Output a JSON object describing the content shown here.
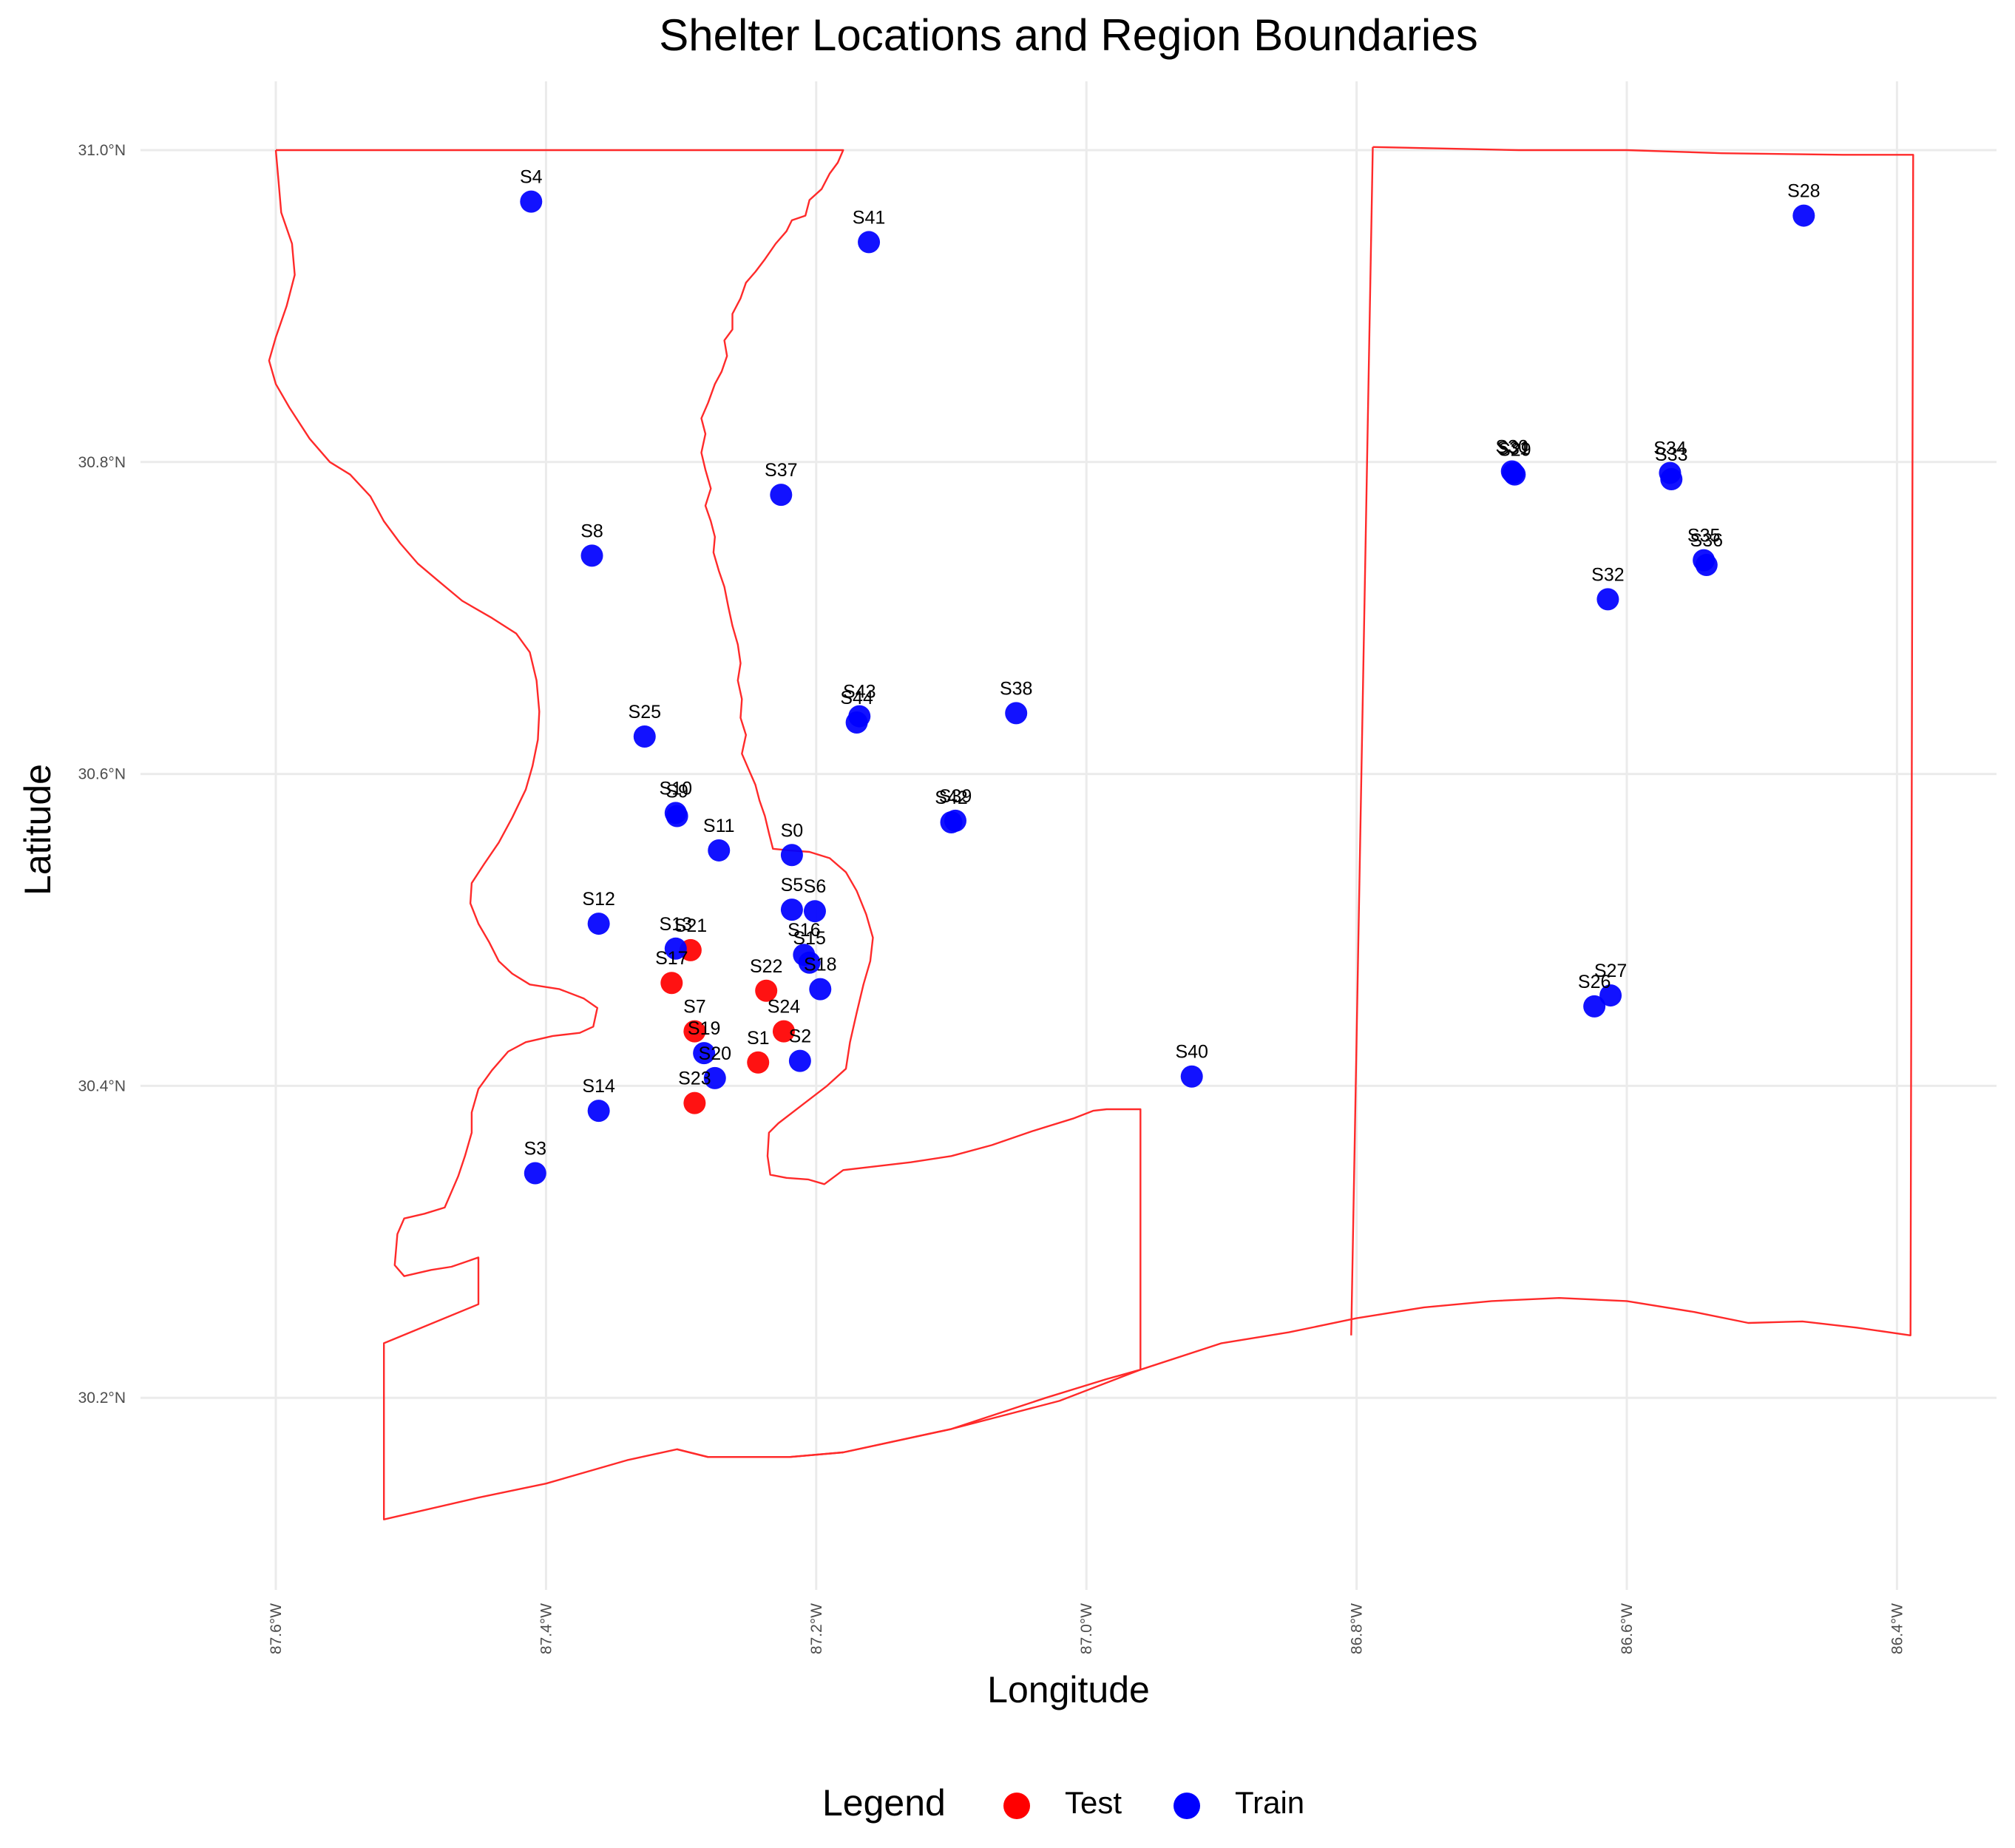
{
  "chart_data": {
    "type": "scatter",
    "title": "Shelter Locations and Region Boundaries",
    "xlabel": "Longitude",
    "ylabel": "Latitude",
    "xlim": [
      -87.6,
      -86.4
    ],
    "ylim": [
      30.2,
      31.0
    ],
    "grid": true,
    "x_ticks": [
      {
        "value": -87.6,
        "label": "87.6°W"
      },
      {
        "value": -87.4,
        "label": "87.4°W"
      },
      {
        "value": -87.2,
        "label": "87.2°W"
      },
      {
        "value": -87.0,
        "label": "87.0°W"
      },
      {
        "value": -86.8,
        "label": "86.8°W"
      },
      {
        "value": -86.6,
        "label": "86.6°W"
      },
      {
        "value": -86.4,
        "label": "86.4°W"
      }
    ],
    "y_ticks": [
      {
        "value": 31.0,
        "label": "31.0°N"
      },
      {
        "value": 30.8,
        "label": "30.8°N"
      },
      {
        "value": 30.6,
        "label": "30.6°N"
      },
      {
        "value": 30.4,
        "label": "30.4°N"
      },
      {
        "value": 30.2,
        "label": "30.2°N"
      }
    ],
    "legend": {
      "title": "Legend",
      "placement": "bottom",
      "entries": [
        {
          "label": "Test",
          "color": "#ff0000"
        },
        {
          "label": "Train",
          "color": "#0000ff"
        }
      ]
    },
    "boundaries": [
      {
        "name": "west-region",
        "points": [
          [
            -87.6,
            31.0
          ],
          [
            -87.43,
            31.0
          ],
          [
            -87.3,
            31.0
          ],
          [
            -87.18,
            31.0
          ],
          [
            -87.184,
            30.992
          ],
          [
            -87.19,
            30.985
          ],
          [
            -87.196,
            30.975
          ],
          [
            -87.205,
            30.968
          ],
          [
            -87.208,
            30.958
          ],
          [
            -87.218,
            30.955
          ],
          [
            -87.222,
            30.948
          ],
          [
            -87.23,
            30.94
          ],
          [
            -87.238,
            30.93
          ],
          [
            -87.245,
            30.922
          ],
          [
            -87.252,
            30.915
          ],
          [
            -87.256,
            30.905
          ],
          [
            -87.262,
            30.895
          ],
          [
            -87.262,
            30.885
          ],
          [
            -87.268,
            30.878
          ],
          [
            -87.266,
            30.868
          ],
          [
            -87.27,
            30.858
          ],
          [
            -87.275,
            30.85
          ],
          [
            -87.28,
            30.838
          ],
          [
            -87.285,
            30.828
          ],
          [
            -87.282,
            30.818
          ],
          [
            -87.285,
            30.806
          ],
          [
            -87.282,
            30.795
          ],
          [
            -87.278,
            30.783
          ],
          [
            -87.282,
            30.772
          ],
          [
            -87.278,
            30.762
          ],
          [
            -87.275,
            30.752
          ],
          [
            -87.276,
            30.742
          ],
          [
            -87.272,
            30.73
          ],
          [
            -87.268,
            30.72
          ],
          [
            -87.265,
            30.707
          ],
          [
            -87.262,
            30.695
          ],
          [
            -87.258,
            30.683
          ],
          [
            -87.256,
            30.671
          ],
          [
            -87.258,
            30.66
          ],
          [
            -87.255,
            30.648
          ],
          [
            -87.256,
            30.636
          ],
          [
            -87.252,
            30.625
          ],
          [
            -87.255,
            30.613
          ],
          [
            -87.25,
            30.603
          ],
          [
            -87.245,
            30.593
          ],
          [
            -87.242,
            30.583
          ],
          [
            -87.238,
            30.573
          ],
          [
            -87.235,
            30.562
          ],
          [
            -87.232,
            30.552
          ],
          [
            -87.22,
            30.551
          ],
          [
            -87.205,
            30.55
          ],
          [
            -87.19,
            30.546
          ],
          [
            -87.178,
            30.537
          ],
          [
            -87.17,
            30.525
          ],
          [
            -87.163,
            30.51
          ],
          [
            -87.158,
            30.495
          ],
          [
            -87.16,
            30.48
          ],
          [
            -87.165,
            30.465
          ],
          [
            -87.17,
            30.447
          ],
          [
            -87.175,
            30.428
          ],
          [
            -87.178,
            30.411
          ],
          [
            -87.192,
            30.4
          ],
          [
            -87.21,
            30.388
          ],
          [
            -87.228,
            30.376
          ],
          [
            -87.235,
            30.37
          ],
          [
            -87.236,
            30.355
          ],
          [
            -87.234,
            30.343
          ],
          [
            -87.222,
            30.341
          ],
          [
            -87.206,
            30.34
          ],
          [
            -87.194,
            30.337
          ],
          [
            -87.18,
            30.346
          ],
          [
            -87.16,
            30.348
          ],
          [
            -87.13,
            30.351
          ],
          [
            -87.1,
            30.355
          ],
          [
            -87.07,
            30.362
          ],
          [
            -87.04,
            30.371
          ],
          [
            -87.01,
            30.379
          ],
          [
            -86.995,
            30.384
          ],
          [
            -86.985,
            30.385
          ],
          [
            -86.96,
            30.385
          ],
          [
            -86.96,
            30.218
          ],
          [
            -87.02,
            30.198
          ],
          [
            -87.1,
            30.18
          ],
          [
            -87.18,
            30.165
          ],
          [
            -87.22,
            30.162
          ],
          [
            -87.28,
            30.162
          ],
          [
            -87.303,
            30.167
          ],
          [
            -87.34,
            30.16
          ],
          [
            -87.4,
            30.145
          ],
          [
            -87.45,
            30.136
          ],
          [
            -87.52,
            30.122
          ],
          [
            -87.52,
            30.235
          ],
          [
            -87.45,
            30.26
          ],
          [
            -87.45,
            30.29
          ],
          [
            -87.46,
            30.287
          ],
          [
            -87.47,
            30.284
          ],
          [
            -87.485,
            30.282
          ],
          [
            -87.505,
            30.278
          ],
          [
            -87.512,
            30.285
          ],
          [
            -87.51,
            30.305
          ],
          [
            -87.505,
            30.315
          ],
          [
            -87.49,
            30.318
          ],
          [
            -87.475,
            30.322
          ],
          [
            -87.47,
            30.332
          ],
          [
            -87.465,
            30.342
          ],
          [
            -87.46,
            30.355
          ],
          [
            -87.455,
            30.37
          ],
          [
            -87.455,
            30.383
          ],
          [
            -87.45,
            30.398
          ],
          [
            -87.44,
            30.41
          ],
          [
            -87.428,
            30.422
          ],
          [
            -87.415,
            30.428
          ],
          [
            -87.395,
            30.432
          ],
          [
            -87.375,
            30.434
          ],
          [
            -87.365,
            30.438
          ],
          [
            -87.362,
            30.45
          ],
          [
            -87.372,
            30.456
          ],
          [
            -87.39,
            30.462
          ],
          [
            -87.412,
            30.465
          ],
          [
            -87.425,
            30.472
          ],
          [
            -87.435,
            30.48
          ],
          [
            -87.442,
            30.492
          ],
          [
            -87.45,
            30.504
          ],
          [
            -87.456,
            30.517
          ],
          [
            -87.455,
            30.53
          ],
          [
            -87.446,
            30.542
          ],
          [
            -87.435,
            30.556
          ],
          [
            -87.425,
            30.572
          ],
          [
            -87.415,
            30.59
          ],
          [
            -87.41,
            30.605
          ],
          [
            -87.406,
            30.622
          ],
          [
            -87.405,
            30.64
          ],
          [
            -87.407,
            30.66
          ],
          [
            -87.412,
            30.678
          ],
          [
            -87.422,
            30.69
          ],
          [
            -87.44,
            30.7
          ],
          [
            -87.462,
            30.711
          ],
          [
            -87.48,
            30.724
          ],
          [
            -87.495,
            30.735
          ],
          [
            -87.508,
            30.748
          ],
          [
            -87.52,
            30.762
          ],
          [
            -87.53,
            30.778
          ],
          [
            -87.545,
            30.792
          ],
          [
            -87.56,
            30.8
          ],
          [
            -87.575,
            30.815
          ],
          [
            -87.59,
            30.835
          ],
          [
            -87.6,
            30.85
          ],
          [
            -87.605,
            30.865
          ],
          [
            -87.6,
            30.88
          ],
          [
            -87.592,
            30.9
          ],
          [
            -87.586,
            30.92
          ],
          [
            -87.588,
            30.94
          ],
          [
            -87.596,
            30.96
          ],
          [
            -87.598,
            30.98
          ],
          [
            -87.6,
            31.0
          ]
        ]
      },
      {
        "name": "east-region",
        "points": [
          [
            -86.788,
            31.002
          ],
          [
            -86.68,
            31.0
          ],
          [
            -86.6,
            31.0
          ],
          [
            -86.53,
            30.998
          ],
          [
            -86.44,
            30.997
          ],
          [
            -86.388,
            30.997
          ],
          [
            -86.39,
            30.24
          ],
          [
            -86.43,
            30.245
          ],
          [
            -86.47,
            30.249
          ],
          [
            -86.51,
            30.248
          ],
          [
            -86.55,
            30.255
          ],
          [
            -86.6,
            30.262
          ],
          [
            -86.65,
            30.264
          ],
          [
            -86.7,
            30.262
          ],
          [
            -86.75,
            30.258
          ],
          [
            -86.8,
            30.251
          ],
          [
            -86.85,
            30.242
          ],
          [
            -86.9,
            30.235
          ],
          [
            -86.96,
            30.218
          ],
          [
            -86.985,
            30.212
          ],
          [
            -87.03,
            30.2
          ],
          [
            -87.1,
            30.18
          ],
          [
            -87.18,
            30.165
          ],
          [
            -87.22,
            30.162
          ],
          [
            -87.28,
            30.162
          ],
          [
            -87.303,
            30.167
          ]
        ]
      },
      {
        "name": "east-region-west-edge",
        "points": [
          [
            -86.788,
            31.002
          ],
          [
            -86.804,
            30.24
          ]
        ]
      }
    ],
    "series": [
      {
        "name": "Test",
        "color": "#ff0000",
        "points": [
          {
            "label": "S1",
            "x": -87.243,
            "y": 30.415
          },
          {
            "label": "S7",
            "x": -87.29,
            "y": 30.435
          },
          {
            "label": "S17",
            "x": -87.307,
            "y": 30.466
          },
          {
            "label": "S21",
            "x": -87.293,
            "y": 30.487
          },
          {
            "label": "S22",
            "x": -87.237,
            "y": 30.461
          },
          {
            "label": "S23",
            "x": -87.29,
            "y": 30.389
          },
          {
            "label": "S24",
            "x": -87.224,
            "y": 30.435
          }
        ]
      },
      {
        "name": "Train",
        "color": "#0000ff",
        "points": [
          {
            "label": "S0",
            "x": -87.218,
            "y": 30.548
          },
          {
            "label": "S2",
            "x": -87.212,
            "y": 30.416
          },
          {
            "label": "S3",
            "x": -87.408,
            "y": 30.344
          },
          {
            "label": "S4",
            "x": -87.411,
            "y": 30.967
          },
          {
            "label": "S5",
            "x": -87.218,
            "y": 30.513
          },
          {
            "label": "S6",
            "x": -87.201,
            "y": 30.512
          },
          {
            "label": "S8",
            "x": -87.366,
            "y": 30.74
          },
          {
            "label": "S9",
            "x": -87.303,
            "y": 30.573
          },
          {
            "label": "S10",
            "x": -87.304,
            "y": 30.575
          },
          {
            "label": "S11",
            "x": -87.272,
            "y": 30.551
          },
          {
            "label": "S12",
            "x": -87.361,
            "y": 30.504
          },
          {
            "label": "S13",
            "x": -87.304,
            "y": 30.488
          },
          {
            "label": "S14",
            "x": -87.361,
            "y": 30.384
          },
          {
            "label": "S15",
            "x": -87.205,
            "y": 30.479
          },
          {
            "label": "S16",
            "x": -87.209,
            "y": 30.484
          },
          {
            "label": "S18",
            "x": -87.197,
            "y": 30.462
          },
          {
            "label": "S19",
            "x": -87.283,
            "y": 30.421
          },
          {
            "label": "S20",
            "x": -87.275,
            "y": 30.405
          },
          {
            "label": "S25",
            "x": -87.327,
            "y": 30.624
          },
          {
            "label": "S26",
            "x": -86.624,
            "y": 30.451
          },
          {
            "label": "S27",
            "x": -86.612,
            "y": 30.458
          },
          {
            "label": "S28",
            "x": -86.469,
            "y": 30.958
          },
          {
            "label": "S29",
            "x": -86.683,
            "y": 30.792
          },
          {
            "label": "S30",
            "x": -86.685,
            "y": 30.794
          },
          {
            "label": "S31",
            "x": -86.684,
            "y": 30.793
          },
          {
            "label": "S32",
            "x": -86.614,
            "y": 30.712
          },
          {
            "label": "S33",
            "x": -86.567,
            "y": 30.789
          },
          {
            "label": "S34",
            "x": -86.568,
            "y": 30.793
          },
          {
            "label": "S35",
            "x": -86.543,
            "y": 30.737
          },
          {
            "label": "S36",
            "x": -86.541,
            "y": 30.734
          },
          {
            "label": "S37",
            "x": -87.226,
            "y": 30.779
          },
          {
            "label": "S38",
            "x": -87.052,
            "y": 30.639
          },
          {
            "label": "S39",
            "x": -87.097,
            "y": 30.57
          },
          {
            "label": "S40",
            "x": -86.922,
            "y": 30.406
          },
          {
            "label": "S41",
            "x": -87.161,
            "y": 30.941
          },
          {
            "label": "S42",
            "x": -87.1,
            "y": 30.569
          },
          {
            "label": "S43",
            "x": -87.168,
            "y": 30.637
          },
          {
            "label": "S44",
            "x": -87.17,
            "y": 30.633
          }
        ]
      }
    ]
  }
}
